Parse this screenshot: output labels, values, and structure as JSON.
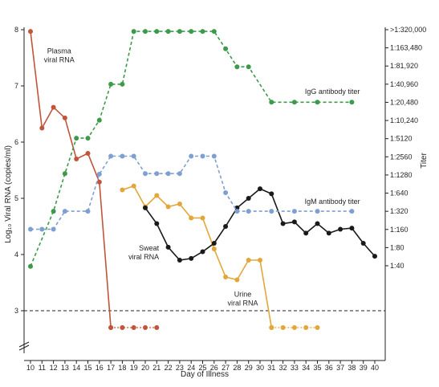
{
  "chart_data": {
    "type": "line",
    "xlabel": "Day of Illness",
    "ylabel_left": "Log₁₀ Viral RNA (copies/ml)",
    "ylabel_right": "Titer",
    "x_ticks": [
      "10",
      "11",
      "12",
      "13",
      "14",
      "15",
      "16",
      "17",
      "18",
      "19",
      "20",
      "21",
      "22",
      "23",
      "24",
      "25",
      "26",
      "27",
      "28",
      "29",
      "30",
      "31",
      "32",
      "33",
      "34",
      "35",
      "36",
      "37",
      "38",
      "39",
      "40"
    ],
    "left_ticks": [
      "3",
      "4",
      "5",
      "6",
      "7",
      "8"
    ],
    "right_ticks": [
      "1:40",
      "1:80",
      "1:160",
      "1:320",
      "1:640",
      "1:1280",
      "1:2560",
      "1:5120",
      "1:10,240",
      "1:20,480",
      "1:40,960",
      "1:81,920",
      "1:163,480",
      ">1:320,000"
    ],
    "ylim_left": [
      2.4,
      8.0
    ],
    "threshold": 3.0,
    "colors": {
      "plasma": "#c0553a",
      "igg": "#3d9a4a",
      "igm": "#7f9fd2",
      "urine": "#e3a63a",
      "sweat": "#1a1a1a",
      "axis": "#231f20"
    },
    "series": [
      {
        "name": "Plasma viral RNA",
        "key": "plasma",
        "axis": "left",
        "dashed": false,
        "x": [
          10,
          11,
          12,
          13,
          14,
          15,
          16,
          17
        ],
        "y": [
          7.97,
          6.25,
          6.62,
          6.43,
          5.7,
          5.8,
          5.29,
          2.7
        ],
        "below_threshold": {
          "x": [
            17,
            18,
            19,
            20,
            21
          ],
          "y": [
            2.7,
            2.7,
            2.7,
            2.7,
            2.7
          ]
        }
      },
      {
        "name": "Urine viral RNA",
        "key": "urine",
        "axis": "left",
        "dashed": false,
        "x": [
          18,
          19,
          20,
          21,
          22,
          23,
          24,
          25,
          26,
          27,
          28,
          29,
          30,
          31
        ],
        "y": [
          5.15,
          5.22,
          4.85,
          5.05,
          4.85,
          4.9,
          4.65,
          4.65,
          4.1,
          3.6,
          3.55,
          3.9,
          3.9,
          2.7
        ],
        "below_threshold": {
          "x": [
            31,
            32,
            33,
            34,
            35
          ],
          "y": [
            2.7,
            2.7,
            2.7,
            2.7,
            2.7
          ]
        }
      },
      {
        "name": "Sweat viral RNA",
        "key": "sweat",
        "axis": "left",
        "dashed": false,
        "x": [
          20,
          21,
          22,
          23,
          24,
          25,
          26,
          27,
          28,
          29,
          30,
          31,
          32,
          33,
          34,
          35,
          36,
          37,
          38,
          39,
          40
        ],
        "y": [
          4.83,
          4.55,
          4.13,
          3.9,
          3.93,
          4.05,
          4.2,
          4.5,
          4.83,
          5.0,
          5.17,
          5.08,
          4.55,
          4.58,
          4.38,
          4.55,
          4.38,
          4.45,
          4.47,
          4.2,
          3.97
        ]
      },
      {
        "name": "IgG antibody titer",
        "key": "igg",
        "axis": "left",
        "dashed": true,
        "x": [
          10,
          12,
          13,
          14,
          15,
          16,
          17,
          18,
          19,
          20,
          21,
          22,
          23,
          24,
          25,
          26,
          27,
          28,
          29,
          31,
          33,
          35,
          38
        ],
        "y": [
          3.79,
          4.77,
          5.44,
          6.07,
          6.07,
          6.39,
          7.03,
          7.03,
          7.97,
          7.97,
          7.97,
          7.97,
          7.97,
          7.97,
          7.97,
          7.97,
          7.66,
          7.34,
          7.34,
          6.71,
          6.71,
          6.71,
          6.71
        ]
      },
      {
        "name": "IgM antibody titer",
        "key": "igm",
        "axis": "left",
        "dashed": true,
        "x": [
          10,
          11,
          12,
          13,
          15,
          16,
          17,
          18,
          19,
          20,
          21,
          22,
          23,
          24,
          25,
          26,
          27,
          28,
          29,
          31,
          33,
          35,
          38
        ],
        "y": [
          4.45,
          4.45,
          4.45,
          4.77,
          4.77,
          5.43,
          5.75,
          5.75,
          5.75,
          5.44,
          5.44,
          5.44,
          5.44,
          5.75,
          5.75,
          5.75,
          5.1,
          4.77,
          4.77,
          4.77,
          4.77,
          4.77,
          4.77
        ]
      }
    ],
    "annotations": [
      {
        "lines": [
          "Plasma",
          "viral RNA"
        ],
        "x": 12.5,
        "y": 7.58,
        "anchor": "middle"
      },
      {
        "lines": [
          "IgG antibody titer"
        ],
        "x": 36.3,
        "y": 6.86,
        "anchor": "middle"
      },
      {
        "lines": [
          "IgM antibody titer"
        ],
        "x": 36.3,
        "y": 4.9,
        "anchor": "middle"
      },
      {
        "lines": [
          "Sweat",
          "viral RNA"
        ],
        "x": 21.2,
        "y": 4.07,
        "anchor": "end"
      },
      {
        "lines": [
          "Urine",
          "viral RNA"
        ],
        "x": 28.5,
        "y": 3.25,
        "anchor": "middle"
      }
    ]
  }
}
